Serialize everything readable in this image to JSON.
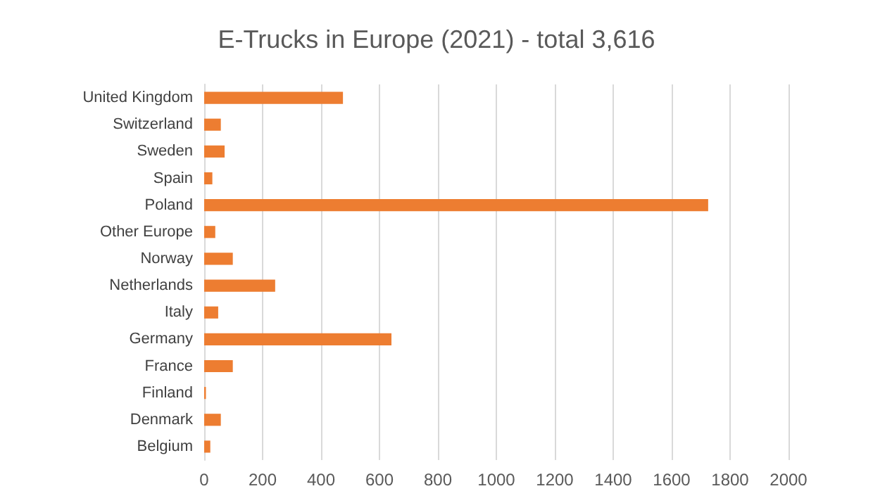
{
  "chart_data": {
    "type": "bar",
    "orientation": "horizontal",
    "title": "E-Trucks in Europe (2021) - total 3,616",
    "categories": [
      "United Kingdom",
      "Switzerland",
      "Sweden",
      "Spain",
      "Poland",
      "Other Europe",
      "Norway",
      "Netherlands",
      "Italy",
      "Germany",
      "France",
      "Finland",
      "Denmark",
      "Belgium"
    ],
    "values": [
      475,
      57,
      70,
      28,
      1725,
      38,
      98,
      243,
      48,
      641,
      98,
      6,
      57,
      21
    ],
    "color": "#ed7d31",
    "xlim": [
      0,
      2000
    ],
    "xticks": [
      0,
      200,
      400,
      600,
      800,
      1000,
      1200,
      1400,
      1600,
      1800,
      2000
    ],
    "grid": "x"
  }
}
